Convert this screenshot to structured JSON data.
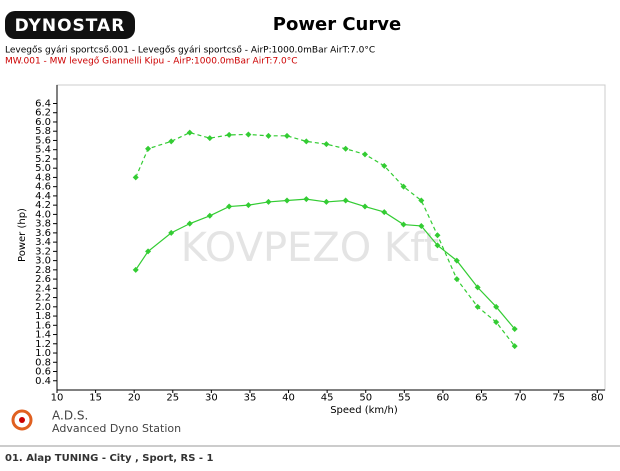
{
  "logo": "DYNOSTAR",
  "chart_data": {
    "type": "line",
    "title": "Power Curve",
    "x_label": "Speed (km/h)",
    "y_label": "Power (hp)",
    "watermark": "KOVPEZO Kft",
    "x": [
      20.2,
      21.8,
      24.8,
      27.2,
      29.8,
      32.3,
      34.8,
      37.4,
      39.8,
      42.3,
      44.9,
      47.4,
      49.9,
      52.4,
      54.9,
      57.2,
      59.3,
      61.8,
      64.5,
      66.9,
      69.3
    ],
    "series": [
      {
        "name": "Levegős gyári sportcső.001 - Levegős gyári sportcső  - AirP:1000.0mBar AirT:7.0°C",
        "label_color": "#000000",
        "color": "#33cc33",
        "dashed": false,
        "values": [
          2.8,
          3.2,
          3.6,
          3.8,
          3.97,
          4.17,
          4.2,
          4.27,
          4.3,
          4.33,
          4.27,
          4.3,
          4.17,
          4.05,
          3.78,
          3.75,
          3.33,
          3.0,
          2.42,
          2.0,
          1.52
        ]
      },
      {
        "name": "MW.001 - MW levegő  Giannelli Kipu   - AirP:1000.0mBar AirT:7.0°C",
        "label_color": "#cc0000",
        "color": "#33cc33",
        "dashed": true,
        "values": [
          4.8,
          5.42,
          5.58,
          5.77,
          5.65,
          5.72,
          5.73,
          5.7,
          5.7,
          5.58,
          5.52,
          5.42,
          5.3,
          5.05,
          4.6,
          4.3,
          3.55,
          2.6,
          2.0,
          1.67,
          1.15
        ]
      }
    ],
    "xlim": [
      10,
      81
    ],
    "ylim": [
      0.2,
      6.8
    ],
    "xticks": [
      10,
      15,
      20,
      25,
      30,
      35,
      40,
      45,
      50,
      55,
      60,
      65,
      70,
      75,
      80
    ],
    "yticks": [
      0.4,
      0.6,
      0.8,
      {
        "value": 1,
        "label": "1.0"
      },
      1.2,
      1.4,
      1.6,
      1.8,
      {
        "value": 2,
        "label": "2.0"
      },
      2.2,
      2.4,
      2.6,
      2.8,
      {
        "value": 3,
        "label": "3.0"
      },
      3.2,
      3.4,
      3.6,
      3.8,
      {
        "value": 4,
        "label": "4.0"
      },
      4.2,
      4.4,
      4.6,
      4.8,
      {
        "value": 5,
        "label": "5.0"
      },
      5.2,
      5.4,
      5.6,
      5.8,
      {
        "value": 6,
        "label": "6.0"
      },
      6.2,
      6.4
    ]
  },
  "footer_logo": {
    "title": "A.D.S.",
    "subtitle": "Advanced Dyno Station"
  },
  "footer": "01. Alap TUNING - City , Sport, RS - 1"
}
